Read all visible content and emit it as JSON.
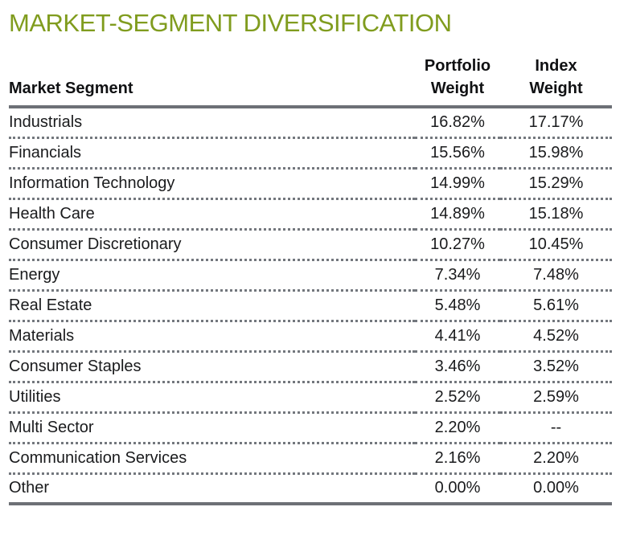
{
  "title": "MARKET-SEGMENT DIVERSIFICATION",
  "colors": {
    "title_green": "#809c1e",
    "text_dark": "#1a1b1d",
    "rule_solid": "#6d7076",
    "rule_dotted": "#73777d"
  },
  "table": {
    "columns": {
      "segment": "Market Segment",
      "portfolio": "Portfolio\nWeight",
      "index": "Index\nWeight"
    },
    "rows": [
      {
        "segment": "Industrials",
        "portfolio": "16.82%",
        "index": "17.17%"
      },
      {
        "segment": "Financials",
        "portfolio": "15.56%",
        "index": "15.98%"
      },
      {
        "segment": "Information Technology",
        "portfolio": "14.99%",
        "index": "15.29%"
      },
      {
        "segment": "Health Care",
        "portfolio": "14.89%",
        "index": "15.18%"
      },
      {
        "segment": "Consumer Discretionary",
        "portfolio": "10.27%",
        "index": "10.45%"
      },
      {
        "segment": "Energy",
        "portfolio": "7.34%",
        "index": "7.48%"
      },
      {
        "segment": "Real Estate",
        "portfolio": "5.48%",
        "index": "5.61%"
      },
      {
        "segment": "Materials",
        "portfolio": "4.41%",
        "index": "4.52%"
      },
      {
        "segment": "Consumer Staples",
        "portfolio": "3.46%",
        "index": "3.52%"
      },
      {
        "segment": "Utilities",
        "portfolio": "2.52%",
        "index": "2.59%"
      },
      {
        "segment": "Multi Sector",
        "portfolio": "2.20%",
        "index": "--"
      },
      {
        "segment": "Communication Services",
        "portfolio": "2.16%",
        "index": "2.20%"
      },
      {
        "segment": "Other",
        "portfolio": "0.00%",
        "index": "0.00%"
      }
    ]
  }
}
